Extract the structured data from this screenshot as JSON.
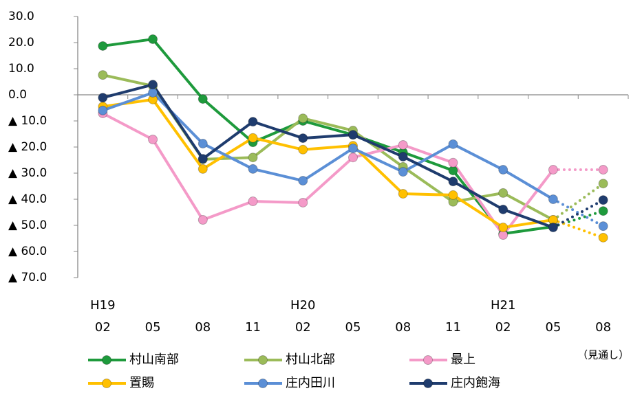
{
  "chart_data": {
    "type": "line",
    "categories": [
      "02",
      "05",
      "08",
      "11",
      "02",
      "05",
      "08",
      "11",
      "02",
      "05",
      "08"
    ],
    "period_labels": [
      "H19",
      null,
      null,
      null,
      "H20",
      null,
      null,
      null,
      "H21",
      null,
      null
    ],
    "forecast_index": 10,
    "forecast_label": "（見通し）",
    "ylim": [
      -70,
      30
    ],
    "yticks": [
      {
        "value": 30,
        "label": "30.0"
      },
      {
        "value": 20,
        "label": "20.0"
      },
      {
        "value": 10,
        "label": "10.0"
      },
      {
        "value": 0,
        "label": "0.0"
      },
      {
        "value": -10,
        "label": "▲ 10.0"
      },
      {
        "value": -20,
        "label": "▲ 20.0"
      },
      {
        "value": -30,
        "label": "▲ 30.0"
      },
      {
        "value": -40,
        "label": "▲ 40.0"
      },
      {
        "value": -50,
        "label": "▲ 50.0"
      },
      {
        "value": -60,
        "label": "▲ 60.0"
      },
      {
        "value": -70,
        "label": "▲ 70.0"
      }
    ],
    "series": [
      {
        "name": "村山南部",
        "color": "#1e9a3c",
        "values": [
          18.7,
          21.3,
          -1.6,
          -18.2,
          -10,
          -15.3,
          -22,
          -29,
          -53.2,
          -50.5,
          -44.5
        ]
      },
      {
        "name": "村山北部",
        "color": "#9bbb59",
        "values": [
          7.6,
          3.4,
          -24.7,
          -24,
          -9,
          -13.7,
          -27.6,
          -41,
          -37.6,
          -47.9,
          -34
        ]
      },
      {
        "name": "最上",
        "color": "#f49ac8",
        "values": [
          -7.1,
          -17.1,
          -47.9,
          -40.8,
          -41.3,
          -24,
          -19.2,
          -26,
          -53.7,
          -28.7,
          -28.7
        ]
      },
      {
        "name": "置賜",
        "color": "#ffc000",
        "values": [
          -4.5,
          -1.8,
          -28.4,
          -16.5,
          -21,
          -19.5,
          -37.9,
          -38.4,
          -50.8,
          -47.9,
          -54.7
        ]
      },
      {
        "name": "庄内田川",
        "color": "#5b8fd6",
        "values": [
          -6,
          0.8,
          -18.7,
          -28.4,
          -32.9,
          -20.5,
          -29.5,
          -18.9,
          -28.7,
          -40,
          -50.3
        ]
      },
      {
        "name": "庄内飽海",
        "color": "#1f3c6e",
        "values": [
          -1.1,
          3.9,
          -24.5,
          -10.3,
          -16.6,
          -15.3,
          -23.7,
          -33.2,
          -43.9,
          -50.8,
          -40.3
        ]
      }
    ]
  }
}
